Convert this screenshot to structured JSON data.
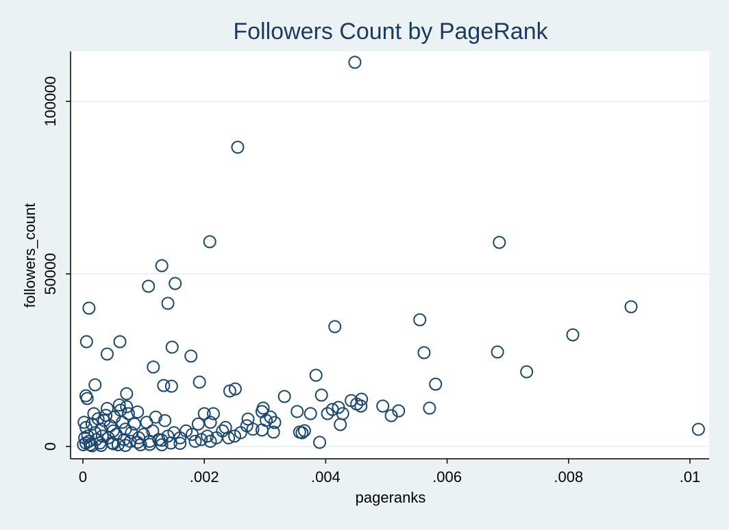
{
  "chart_data": {
    "type": "scatter",
    "title": "Followers Count by PageRank",
    "x_label": "pageranks",
    "y_label": "followers_count",
    "color": "#1a476f",
    "grid": true,
    "xlim": [
      -0.000203,
      0.010316
    ],
    "ylim": [
      -3571,
      114484
    ],
    "xticks": [
      0,
      {
        "value": 0.002,
        "label": ".002"
      },
      {
        "value": 0.004,
        "label": ".004"
      },
      {
        "value": 0.006,
        "label": ".006"
      },
      {
        "value": 0.008,
        "label": ".008"
      },
      {
        "value": 0.01,
        "label": ".01"
      }
    ],
    "yticks": [
      0,
      50000,
      100000
    ],
    "x": [
      0.00448,
      0.00255,
      0.00209,
      0.00686,
      0.0013,
      0.00108,
      0.00152,
      0.0014,
      0.0001,
      0.00903,
      6e-05,
      0.00061,
      0.0004,
      0.00147,
      0.00178,
      0.00116,
      0.00555,
      0.00415,
      0.00562,
      0.00807,
      0.00683,
      0.00731,
      0.00384,
      0.00581,
      0.00192,
      0.00133,
      0.00146,
      0.0002,
      0.00242,
      0.00251,
      0.00072,
      5e-05,
      7e-05,
      0.00332,
      0.00393,
      0.00459,
      0.00442,
      0.00451,
      0.00458,
      0.00494,
      0.00421,
      0.00411,
      0.00571,
      0.0052,
      0.00508,
      0.00353,
      0.00403,
      0.00428,
      0.00375,
      0.00297,
      0.00295,
      0.00309,
      0.00316,
      0.00302,
      0.00272,
      0.00424,
      0.01014,
      0.0039,
      0.00357,
      0.00365,
      0.00361,
      0.00314,
      0.00295,
      2e-05,
      5e-05,
      8e-05,
      0.0001,
      0.00012,
      0.00015,
      0.00018,
      0.0002,
      0.00022,
      0.00025,
      0.00028,
      0.0003,
      0.00032,
      0.00035,
      0.00038,
      0.0004,
      0.00042,
      0.00045,
      0.00048,
      0.0005,
      0.00052,
      0.00055,
      0.00058,
      0.0006,
      0.00062,
      0.00065,
      0.00068,
      0.0007,
      0.00072,
      0.00075,
      0.00078,
      0.0008,
      0.00085,
      0.0009,
      0.00092,
      0.00095,
      0.001,
      0.00105,
      0.0011,
      0.00115,
      0.0012,
      0.00125,
      0.0013,
      0.00135,
      0.0014,
      0.00145,
      0.0015,
      0.0016,
      0.0017,
      0.0018,
      0.0019,
      0.00195,
      0.002,
      0.00205,
      0.0021,
      0.00215,
      0.0022,
      0.0023,
      0.00235,
      0.0024,
      0.0025,
      0.0026,
      0.0027,
      0.0028,
      5e-05,
      3e-05,
      1e-05,
      0.00015,
      0.0003,
      0.0005,
      0.0007,
      0.0009,
      0.0011,
      0.0013,
      0.0016,
      0.00185,
      0.0021
    ],
    "values": [
      111310,
      86706,
      59325,
      59127,
      52381,
      46429,
      47222,
      41468,
      40079,
      40476,
      30357,
      30357,
      26786,
      28770,
      26190,
      23016,
      36706,
      34722,
      27183,
      32341,
      27381,
      21627,
      20635,
      18056,
      18651,
      17659,
      17460,
      17857,
      16071,
      16667,
      15278,
      14683,
      13889,
      14484,
      14881,
      13690,
      13294,
      12302,
      11706,
      11706,
      11310,
      10714,
      11111,
      10317,
      8929,
      10119,
      9524,
      9524,
      9524,
      11111,
      10119,
      8532,
      6944,
      7540,
      7937,
      6349,
      4960,
      1190,
      4167,
      4563,
      3968,
      4167,
      4762,
      7000,
      5500,
      3000,
      1500,
      500,
      6500,
      9500,
      4000,
      2000,
      8000,
      1000,
      5000,
      3000,
      7500,
      9000,
      11000,
      2500,
      6000,
      1000,
      4500,
      8500,
      3500,
      500,
      12000,
      10500,
      7000,
      2000,
      5000,
      11500,
      9500,
      1500,
      4000,
      6500,
      10000,
      2500,
      500,
      3500,
      7000,
      1500,
      4500,
      8500,
      2000,
      500,
      7500,
      3000,
      1000,
      4000,
      2500,
      4500,
      3500,
      6500,
      2000,
      9500,
      3000,
      7000,
      9500,
      2500,
      4500,
      5500,
      2500,
      3000,
      4000,
      6000,
      5000,
      1000,
      2500,
      500,
      200,
      300,
      800,
      300,
      1200,
      600,
      1800,
      900,
      1500,
      1500
    ]
  }
}
